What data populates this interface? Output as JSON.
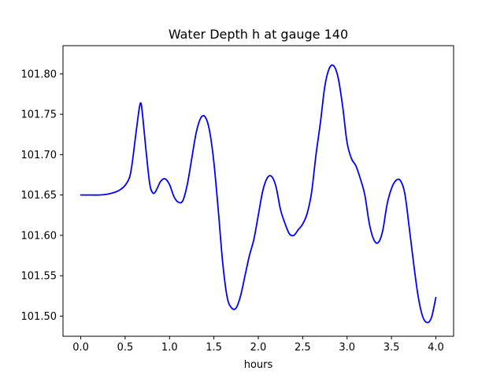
{
  "chart_data": {
    "type": "line",
    "title": "Water Depth h at gauge 140",
    "xlabel": "hours",
    "ylabel": "",
    "xlim": [
      -0.2,
      4.2
    ],
    "ylim": [
      101.475,
      101.835
    ],
    "xticks": [
      0.0,
      0.5,
      1.0,
      1.5,
      2.0,
      2.5,
      3.0,
      3.5,
      4.0
    ],
    "xtick_labels": [
      "0.0",
      "0.5",
      "1.0",
      "1.5",
      "2.0",
      "2.5",
      "3.0",
      "3.5",
      "4.0"
    ],
    "yticks": [
      101.5,
      101.55,
      101.6,
      101.65,
      101.7,
      101.75,
      101.8
    ],
    "ytick_labels": [
      "101.50",
      "101.55",
      "101.60",
      "101.65",
      "101.70",
      "101.75",
      "101.80"
    ],
    "grid": false,
    "line_color": "#0000ff",
    "series": [
      {
        "name": "",
        "x": [
          0.0,
          0.1,
          0.2,
          0.3,
          0.4,
          0.45,
          0.5,
          0.55,
          0.58,
          0.62,
          0.66,
          0.68,
          0.7,
          0.74,
          0.78,
          0.82,
          0.86,
          0.9,
          0.95,
          1.0,
          1.05,
          1.1,
          1.15,
          1.2,
          1.25,
          1.3,
          1.35,
          1.4,
          1.45,
          1.5,
          1.55,
          1.6,
          1.65,
          1.7,
          1.75,
          1.8,
          1.85,
          1.9,
          1.95,
          2.0,
          2.05,
          2.1,
          2.15,
          2.2,
          2.25,
          2.3,
          2.35,
          2.4,
          2.45,
          2.5,
          2.55,
          2.6,
          2.65,
          2.7,
          2.75,
          2.8,
          2.85,
          2.9,
          2.95,
          3.0,
          3.05,
          3.1,
          3.15,
          3.2,
          3.25,
          3.3,
          3.35,
          3.4,
          3.45,
          3.5,
          3.55,
          3.6,
          3.65,
          3.7,
          3.75,
          3.8,
          3.85,
          3.9,
          3.95,
          4.0
        ],
        "y": [
          101.65,
          101.65,
          101.65,
          101.651,
          101.654,
          101.657,
          101.662,
          101.672,
          101.69,
          101.725,
          101.758,
          101.763,
          101.745,
          101.7,
          101.662,
          101.652,
          101.658,
          101.667,
          101.67,
          101.663,
          101.648,
          101.641,
          101.643,
          101.663,
          101.695,
          101.727,
          101.745,
          101.747,
          101.73,
          101.69,
          101.63,
          101.565,
          101.523,
          101.51,
          101.51,
          101.525,
          101.55,
          101.575,
          101.595,
          101.625,
          101.655,
          101.671,
          101.673,
          101.66,
          101.632,
          101.615,
          101.602,
          101.6,
          101.607,
          101.614,
          101.627,
          101.653,
          101.7,
          101.74,
          101.785,
          101.807,
          101.81,
          101.795,
          101.76,
          101.715,
          101.695,
          101.686,
          101.67,
          101.65,
          101.615,
          101.595,
          101.591,
          101.605,
          101.638,
          101.658,
          101.668,
          101.668,
          101.652,
          101.61,
          101.565,
          101.525,
          101.5,
          101.492,
          101.498,
          101.523
        ]
      }
    ]
  }
}
